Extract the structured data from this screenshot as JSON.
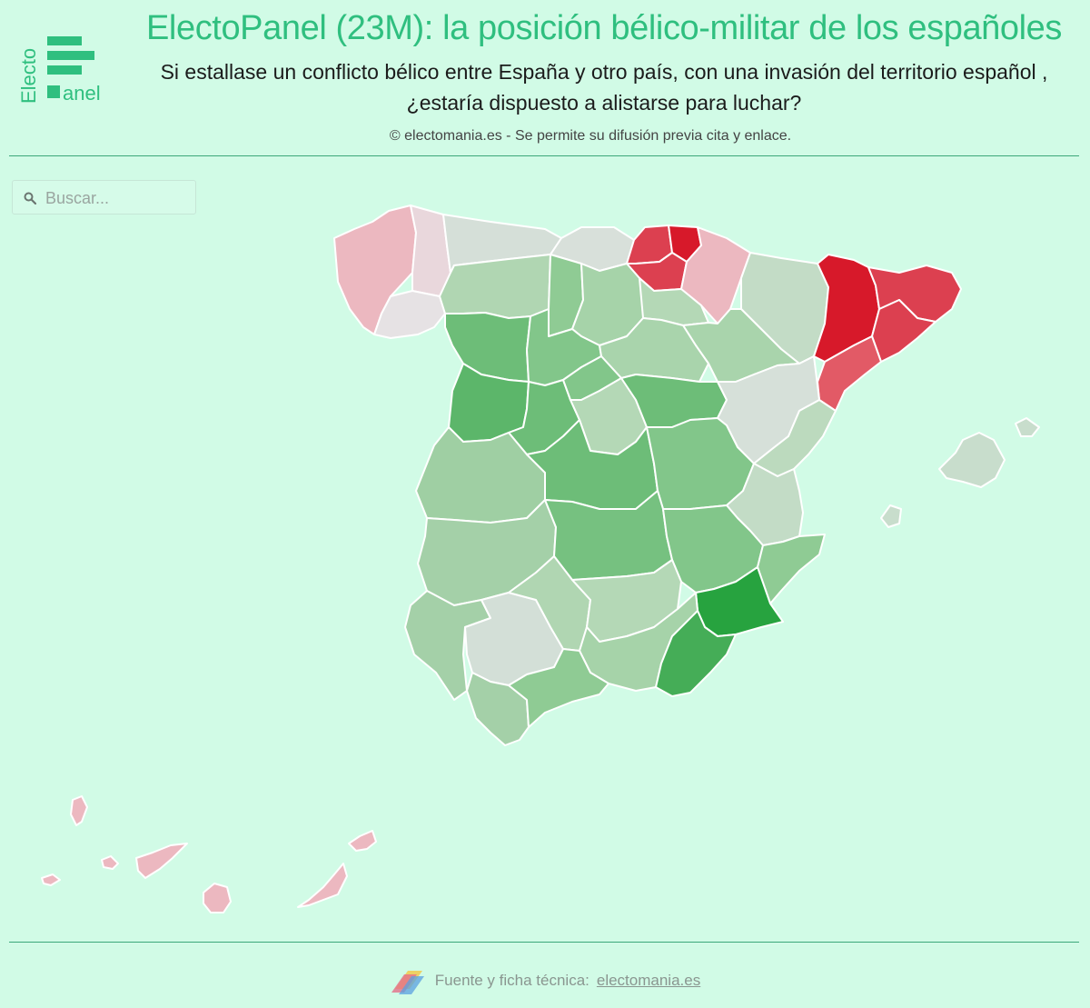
{
  "header": {
    "title": "ElectoPanel (23M): la posición bélico-militar de los españoles",
    "subtitle": "Si estallase un conflicto bélico entre España y otro país, con una invasión del territorio español , ¿estaría dispuesto a alistarse para luchar?",
    "credit": "© electomania.es - Se permite su difusión previa cita y enlace."
  },
  "logo": {
    "word_top": "Electo",
    "word_bottom": "anel",
    "color": "#2fbf7f"
  },
  "search": {
    "placeholder": "Buscar...",
    "icon": "search-icon"
  },
  "footer": {
    "label": "Fuente y ficha técnica:",
    "link": "electomania.es",
    "icon": "electomania-logo-icon"
  },
  "colors": {
    "accent": "#2fbf7f",
    "background": "#d1fbe6",
    "green_strong": "#27a33f",
    "green_mid": "#6dbd78",
    "green_light": "#a2d1a6",
    "neutral": "#d3dfd7",
    "pink_light": "#ecb8c0",
    "red_mid": "#dc4050",
    "red_strong": "#d7192a"
  },
  "regions": [
    {
      "id": "galicia-west",
      "fill": "#ecb8c0"
    },
    {
      "id": "galicia-east",
      "fill": "#e9d7dc"
    },
    {
      "id": "galicia-south",
      "fill": "#e6e2e4"
    },
    {
      "id": "asturias",
      "fill": "#d5dfd8"
    },
    {
      "id": "cantabria",
      "fill": "#d8e0da"
    },
    {
      "id": "vizcaya",
      "fill": "#dc4050"
    },
    {
      "id": "guipuzcoa",
      "fill": "#d7192a"
    },
    {
      "id": "alava",
      "fill": "#dc4050"
    },
    {
      "id": "navarra",
      "fill": "#ecb8c0"
    },
    {
      "id": "leon",
      "fill": "#b0d6b2"
    },
    {
      "id": "palencia",
      "fill": "#8fcb94"
    },
    {
      "id": "burgos",
      "fill": "#a6d3a9"
    },
    {
      "id": "la-rioja",
      "fill": "#b4d8b6"
    },
    {
      "id": "huesca",
      "fill": "#c3dcc6"
    },
    {
      "id": "zaragoza",
      "fill": "#a9d4ac"
    },
    {
      "id": "lleida",
      "fill": "#d7192a"
    },
    {
      "id": "girona",
      "fill": "#dc4050"
    },
    {
      "id": "barcelona",
      "fill": "#dc4050"
    },
    {
      "id": "tarragona",
      "fill": "#e25a66"
    },
    {
      "id": "zamora",
      "fill": "#6dbd78"
    },
    {
      "id": "valladolid",
      "fill": "#82c68a"
    },
    {
      "id": "soria",
      "fill": "#a9d4ac"
    },
    {
      "id": "salamanca",
      "fill": "#5cb66a"
    },
    {
      "id": "avila",
      "fill": "#6dbd78"
    },
    {
      "id": "segovia",
      "fill": "#82c68a"
    },
    {
      "id": "madrid",
      "fill": "#b4d8b6"
    },
    {
      "id": "guadalajara",
      "fill": "#6dbd78"
    },
    {
      "id": "teruel",
      "fill": "#d6e0d9"
    },
    {
      "id": "castellon",
      "fill": "#bcdabe"
    },
    {
      "id": "caceres",
      "fill": "#9fcfa3"
    },
    {
      "id": "toledo",
      "fill": "#6dbd78"
    },
    {
      "id": "cuenca",
      "fill": "#82c68a"
    },
    {
      "id": "valencia",
      "fill": "#c3dcc6"
    },
    {
      "id": "badajoz",
      "fill": "#a4d0a8"
    },
    {
      "id": "ciudad-real",
      "fill": "#76c180"
    },
    {
      "id": "albacete",
      "fill": "#82c68a"
    },
    {
      "id": "alicante",
      "fill": "#8fcb94"
    },
    {
      "id": "murcia",
      "fill": "#27a33f"
    },
    {
      "id": "huelva",
      "fill": "#a4d0a8"
    },
    {
      "id": "sevilla",
      "fill": "#d3dfd7"
    },
    {
      "id": "cordoba",
      "fill": "#b0d6b2"
    },
    {
      "id": "jaen",
      "fill": "#b4d8b6"
    },
    {
      "id": "granada",
      "fill": "#a6d3a9"
    },
    {
      "id": "almeria",
      "fill": "#45ad57"
    },
    {
      "id": "cadiz",
      "fill": "#a4d0a8"
    },
    {
      "id": "malaga",
      "fill": "#8fcb94"
    },
    {
      "id": "mallorca",
      "fill": "#c8ddcc"
    },
    {
      "id": "menorca",
      "fill": "#c8ddcc"
    },
    {
      "id": "ibiza",
      "fill": "#c8ddcc"
    },
    {
      "id": "la-palma",
      "fill": "#ecb8c0"
    },
    {
      "id": "el-hierro",
      "fill": "#ecb8c0"
    },
    {
      "id": "la-gomera",
      "fill": "#ecb8c0"
    },
    {
      "id": "tenerife",
      "fill": "#ecb8c0"
    },
    {
      "id": "gran-canaria",
      "fill": "#ecb8c0"
    },
    {
      "id": "fuerteventura",
      "fill": "#ecb8c0"
    },
    {
      "id": "lanzarote",
      "fill": "#ecb8c0"
    }
  ]
}
